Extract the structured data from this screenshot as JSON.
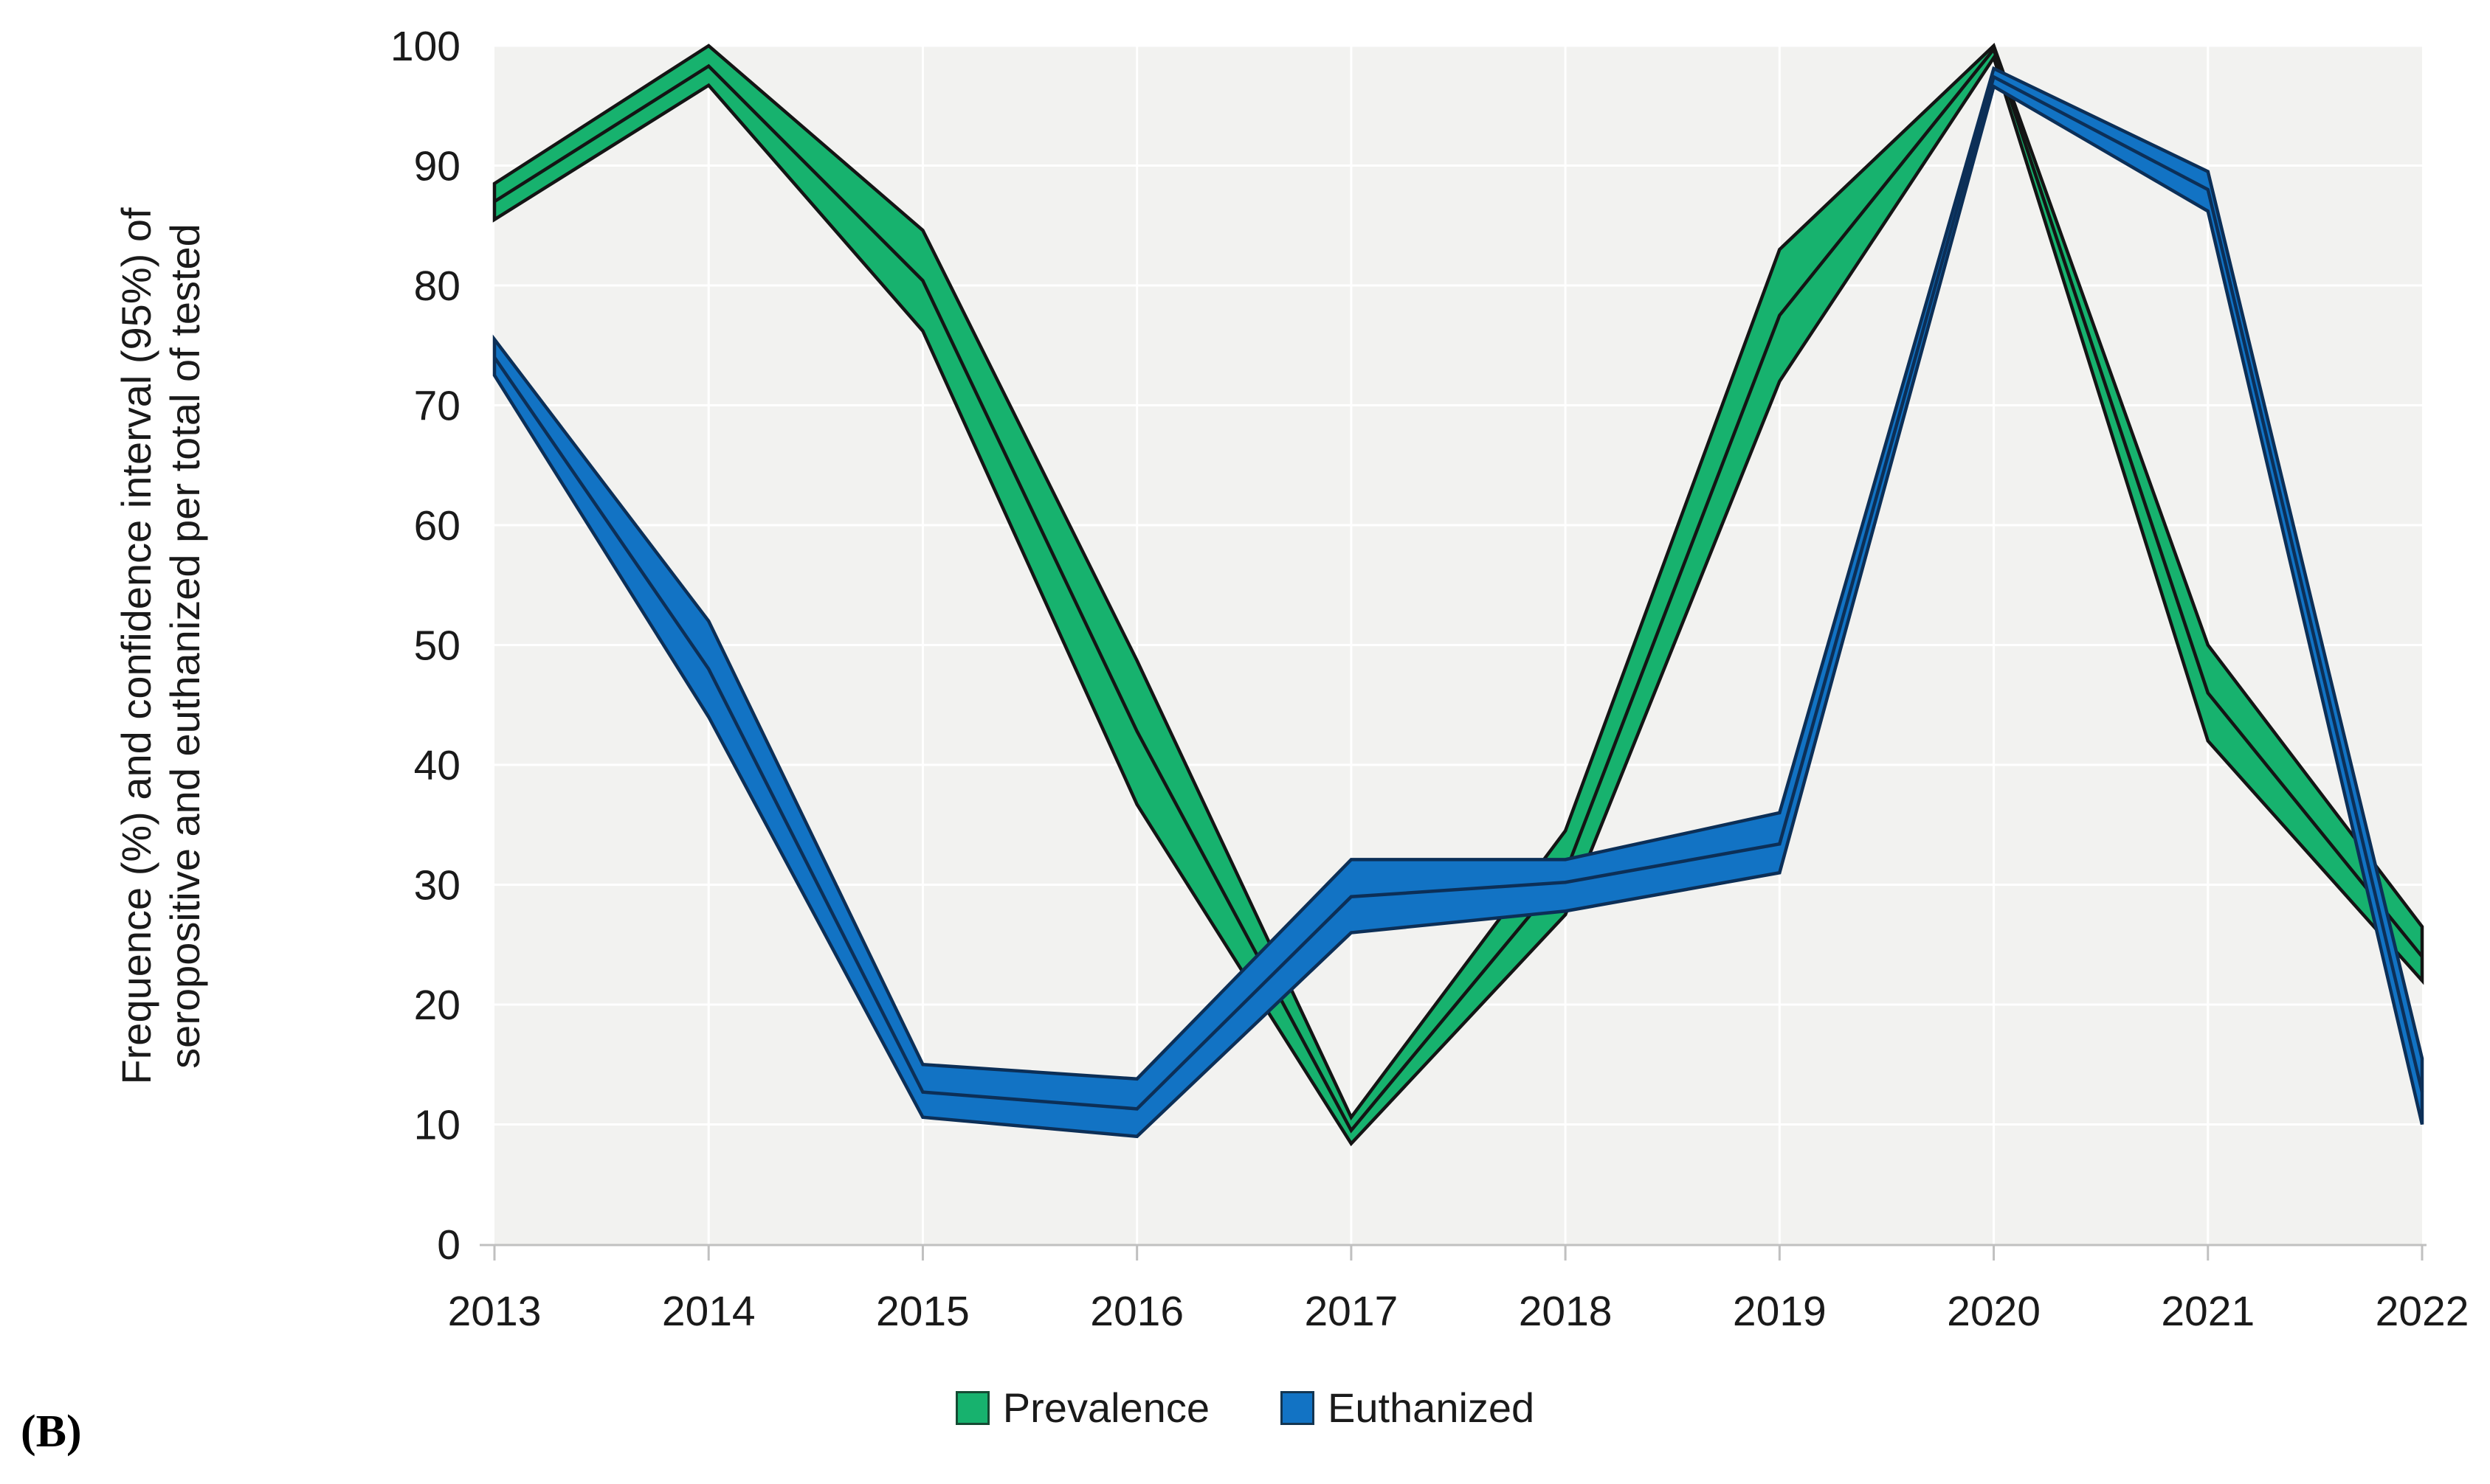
{
  "figure_label": "(B)",
  "axis": {
    "title_line1": "Frequence (%) and confidence interval (95%) of",
    "title_line2": "seropositive and euthanized per total of tested"
  },
  "chart_data": {
    "type": "area",
    "variant": "line-with-95ci-bands",
    "title": "",
    "xlabel": "",
    "ylabel": "Frequence (%) and confidence interval (95%) of seropositive and euthanized per total of tested",
    "ylim": [
      0,
      100
    ],
    "grid": true,
    "legend_position": "bottom",
    "plot_bg": "#f2f2f0",
    "gridline_color": "#ffffff",
    "axisline_color": "#c0c0c0",
    "y_ticks": [
      0,
      10,
      20,
      30,
      40,
      50,
      60,
      70,
      80,
      90,
      100
    ],
    "y_tick_labels": [
      "0",
      "10",
      "20",
      "30",
      "40",
      "50",
      "60",
      "70",
      "80",
      "90",
      "100"
    ],
    "categories": [
      "2013",
      "2014",
      "2015",
      "2016",
      "2017",
      "2018",
      "2019",
      "2020",
      "2021",
      "2022"
    ],
    "series": [
      {
        "name": "Prevalence",
        "color": "#17B26E",
        "stroke": "#141414",
        "center": [
          87.0,
          98.3,
          80.4,
          42.8,
          9.5,
          31.0,
          77.5,
          99.7,
          46.0,
          24.0
        ],
        "lower": [
          85.5,
          96.7,
          76.2,
          36.7,
          8.4,
          27.5,
          72.0,
          99.0,
          42.0,
          22.0
        ],
        "upper": [
          88.5,
          100.0,
          84.6,
          48.7,
          10.6,
          34.5,
          83.0,
          100.0,
          50.0,
          26.5
        ]
      },
      {
        "name": "Euthanized",
        "color": "#1273C4",
        "stroke": "#0c2f57",
        "center": [
          74.0,
          48.0,
          12.7,
          11.3,
          29.0,
          30.2,
          33.4,
          97.4,
          88.0,
          12.7
        ],
        "lower": [
          72.5,
          44.0,
          10.6,
          9.0,
          26.0,
          27.8,
          31.0,
          96.6,
          86.2,
          10.0
        ],
        "upper": [
          75.5,
          52.0,
          15.0,
          13.8,
          32.1,
          32.1,
          36.0,
          98.1,
          89.5,
          15.5
        ]
      }
    ]
  }
}
